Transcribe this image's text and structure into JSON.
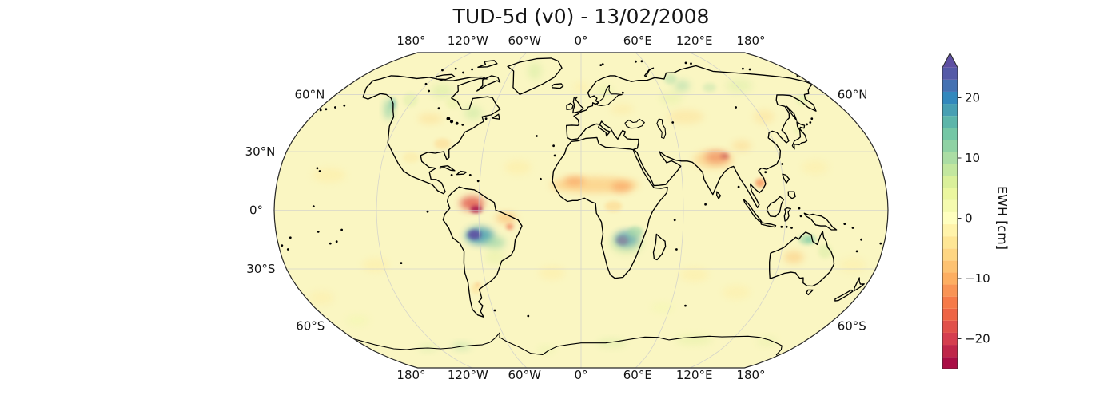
{
  "figure": {
    "title": "TUD-5d (v0) - 13/02/2008",
    "background": "#ffffff"
  },
  "map": {
    "projection": "Robinson",
    "background_color": "#faf6c2",
    "grid_color": "#cccccc",
    "coast_color": "#000000",
    "outline_color": "#262626",
    "lon_gridlines_deg": [
      -120,
      -60,
      0,
      60,
      120
    ],
    "lat_gridlines_deg": [
      -60,
      -30,
      0,
      30,
      60
    ],
    "top_axis_labels": [
      {
        "lon": -180,
        "text": "180°"
      },
      {
        "lon": -120,
        "text": "120°W"
      },
      {
        "lon": -60,
        "text": "60°W"
      },
      {
        "lon": 0,
        "text": "0°"
      },
      {
        "lon": 60,
        "text": "60°E"
      },
      {
        "lon": 120,
        "text": "120°E"
      },
      {
        "lon": 180,
        "text": "180°"
      }
    ],
    "bottom_axis_labels": [
      {
        "lon": -180,
        "text": "180°"
      },
      {
        "lon": -120,
        "text": "120°W"
      },
      {
        "lon": -60,
        "text": "60°W"
      },
      {
        "lon": 0,
        "text": "0°"
      },
      {
        "lon": 60,
        "text": "60°E"
      },
      {
        "lon": 120,
        "text": "120°E"
      },
      {
        "lon": 180,
        "text": "180°"
      }
    ],
    "left_axis_labels": [
      {
        "lat": 60,
        "text": "60°N"
      },
      {
        "lat": 30,
        "text": "30°N"
      },
      {
        "lat": 0,
        "text": "0°"
      },
      {
        "lat": -30,
        "text": "30°S"
      },
      {
        "lat": -60,
        "text": "60°S"
      }
    ],
    "right_axis_labels": [
      {
        "lat": 60,
        "text": "60°N"
      },
      {
        "lat": -60,
        "text": "60°S"
      }
    ]
  },
  "colorbar": {
    "label": "EWH [cm]",
    "vmin": -25,
    "vmax": 25,
    "n_segments": 25,
    "extend": "max",
    "colormap_name": "Spectral",
    "colormap_stops": [
      "#9e0142",
      "#d53e4f",
      "#f46d43",
      "#fdae61",
      "#fee08b",
      "#ffffbf",
      "#e6f598",
      "#abdda4",
      "#66c2a5",
      "#3288bd",
      "#5e4fa2"
    ],
    "ticks": [
      {
        "value": 20,
        "text": "20"
      },
      {
        "value": 10,
        "text": "10"
      },
      {
        "value": 0,
        "text": "0"
      },
      {
        "value": -10,
        "text": "−10"
      },
      {
        "value": -20,
        "text": "−20"
      }
    ]
  },
  "chart_data": {
    "type": "heatmap",
    "title": "TUD-5d (v0) - 13/02/2008",
    "variable": "EWH [cm]",
    "date": "13/02/2008",
    "projection": "Robinson",
    "value_range": [
      -25,
      25
    ],
    "legend_position": "right",
    "anomalies": [
      {
        "region": "Amazon north",
        "lon": -64,
        "lat": 3.5,
        "rx_deg": 7,
        "ry_deg": 4,
        "ewh_cm": -18,
        "opacity": 0.8
      },
      {
        "region": "Amazon north core",
        "lon": -61.5,
        "lat": 0.5,
        "rx_deg": 3.5,
        "ry_deg": 2,
        "ewh_cm": -25,
        "opacity": 0.8
      },
      {
        "region": "NE Brazil",
        "lon": -44,
        "lat": -4,
        "rx_deg": 6,
        "ry_deg": 3,
        "ewh_cm": -10,
        "opacity": 0.55
      },
      {
        "region": "NE Brazil spot",
        "lon": -42,
        "lat": -8.5,
        "rx_deg": 2.2,
        "ry_deg": 1.8,
        "ewh_cm": -16,
        "opacity": 0.6
      },
      {
        "region": "Amazon south",
        "lon": -60,
        "lat": -13,
        "rx_deg": 8.5,
        "ry_deg": 5,
        "ewh_cm": 18,
        "opacity": 0.85
      },
      {
        "region": "Amazon south core",
        "lon": -63,
        "lat": -12.5,
        "rx_deg": 4,
        "ry_deg": 2.8,
        "ewh_cm": 25,
        "opacity": 0.9
      },
      {
        "region": "Amazon teal tail",
        "lon": -51,
        "lat": -16.5,
        "rx_deg": 6,
        "ry_deg": 3.5,
        "ewh_cm": 12,
        "opacity": 0.6
      },
      {
        "region": "South Brazil",
        "lon": -52,
        "lat": -24,
        "rx_deg": 6,
        "ry_deg": 4,
        "ewh_cm": 6,
        "opacity": 0.35
      },
      {
        "region": "Zambezi blue",
        "lon": 27,
        "lat": -15,
        "rx_deg": 7,
        "ry_deg": 4.5,
        "ewh_cm": 20,
        "opacity": 0.85
      },
      {
        "region": "Zambezi core",
        "lon": 24.5,
        "lat": -15.5,
        "rx_deg": 3.5,
        "ry_deg": 2.5,
        "ewh_cm": 25,
        "opacity": 0.95
      },
      {
        "region": "East Africa teal",
        "lon": 32,
        "lat": -11,
        "rx_deg": 4.5,
        "ry_deg": 3,
        "ewh_cm": 12,
        "opacity": 0.55
      },
      {
        "region": "Zambezi halo",
        "lon": 27,
        "lat": -17,
        "rx_deg": 10,
        "ry_deg": 6.5,
        "ewh_cm": 8,
        "opacity": 0.4
      },
      {
        "region": "Sahel band",
        "lon": 8,
        "lat": 13,
        "rx_deg": 26,
        "ry_deg": 4.5,
        "ewh_cm": -8,
        "opacity": 0.6
      },
      {
        "region": "Sahel west",
        "lon": -4,
        "lat": 15,
        "rx_deg": 6,
        "ry_deg": 2.5,
        "ewh_cm": -12,
        "opacity": 0.6
      },
      {
        "region": "Sahel east",
        "lon": 24,
        "lat": 12,
        "rx_deg": 6,
        "ry_deg": 3,
        "ewh_cm": -12,
        "opacity": 0.55
      },
      {
        "region": "Congo",
        "lon": 19,
        "lat": 2,
        "rx_deg": 5,
        "ry_deg": 3,
        "ewh_cm": -7,
        "opacity": 0.45
      },
      {
        "region": "North India",
        "lon": 82,
        "lat": 27,
        "rx_deg": 7,
        "ry_deg": 3,
        "ewh_cm": -18,
        "opacity": 0.75
      },
      {
        "region": "North India core",
        "lon": 87,
        "lat": 27.5,
        "rx_deg": 2.5,
        "ry_deg": 1.6,
        "ewh_cm": -24,
        "opacity": 0.7
      },
      {
        "region": "India halo",
        "lon": 80,
        "lat": 26,
        "rx_deg": 12,
        "ry_deg": 5,
        "ewh_cm": -8,
        "opacity": 0.5
      },
      {
        "region": "Indochina",
        "lon": 106,
        "lat": 14,
        "rx_deg": 3,
        "ry_deg": 2.5,
        "ewh_cm": -13,
        "opacity": 0.7
      },
      {
        "region": "Central Asia",
        "lon": 70,
        "lat": 48,
        "rx_deg": 12,
        "ry_deg": 4,
        "ewh_cm": -6,
        "opacity": 0.35
      },
      {
        "region": "NE China",
        "lon": 122,
        "lat": 48,
        "rx_deg": 7,
        "ry_deg": 4,
        "ewh_cm": -6,
        "opacity": 0.35
      },
      {
        "region": "Tibet east",
        "lon": 99,
        "lat": 33,
        "rx_deg": 6,
        "ry_deg": 3,
        "ewh_cm": -7,
        "opacity": 0.4
      },
      {
        "region": "West Siberia",
        "lon": 65,
        "lat": 58,
        "rx_deg": 8,
        "ry_deg": 4,
        "ewh_cm": 6,
        "opacity": 0.3
      },
      {
        "region": "Siberia teal west",
        "lon": 78,
        "lat": 65,
        "rx_deg": 6,
        "ry_deg": 3,
        "ewh_cm": 12,
        "opacity": 0.45
      },
      {
        "region": "Siberia teal east",
        "lon": 98,
        "lat": 64,
        "rx_deg": 5,
        "ry_deg": 2.5,
        "ewh_cm": 10,
        "opacity": 0.35
      },
      {
        "region": "East Siberia",
        "lon": 122,
        "lat": 65,
        "rx_deg": 10,
        "ry_deg": 4,
        "ewh_cm": 7,
        "opacity": 0.35
      },
      {
        "region": "Kara coast",
        "lon": 72,
        "lat": 69,
        "rx_deg": 5,
        "ry_deg": 3,
        "ewh_cm": 11,
        "opacity": 0.4
      },
      {
        "region": "East Europe",
        "lon": 28,
        "lat": 52,
        "rx_deg": 8,
        "ry_deg": 3,
        "ewh_cm": -5,
        "opacity": 0.3
      },
      {
        "region": "Scandinavia",
        "lon": 18,
        "lat": 62,
        "rx_deg": 6,
        "ry_deg": 3,
        "ewh_cm": 6,
        "opacity": 0.35
      },
      {
        "region": "Alaska coast teal",
        "lon": -132,
        "lat": 52,
        "rx_deg": 3,
        "ry_deg": 6,
        "ewh_cm": 13,
        "opacity": 0.65
      },
      {
        "region": "Alaska coast core",
        "lon": -132,
        "lat": 55,
        "rx_deg": 2,
        "ry_deg": 3,
        "ewh_cm": 16,
        "opacity": 0.55
      },
      {
        "region": "BC inland",
        "lon": -122,
        "lat": 57,
        "rx_deg": 5,
        "ry_deg": 4,
        "ewh_cm": 7,
        "opacity": 0.35
      },
      {
        "region": "North Canada",
        "lon": -104,
        "lat": 62,
        "rx_deg": 8,
        "ry_deg": 4,
        "ewh_cm": 7,
        "opacity": 0.45
      },
      {
        "region": "Central Canada",
        "lon": -90,
        "lat": 55,
        "rx_deg": 5,
        "ry_deg": 3,
        "ewh_cm": 6,
        "opacity": 0.3
      },
      {
        "region": "Quebec",
        "lon": -73,
        "lat": 50,
        "rx_deg": 6,
        "ry_deg": 4,
        "ewh_cm": 8,
        "opacity": 0.5
      },
      {
        "region": "Prairies",
        "lon": -100,
        "lat": 47,
        "rx_deg": 8,
        "ry_deg": 3,
        "ewh_cm": -6,
        "opacity": 0.4
      },
      {
        "region": "SE US",
        "lon": -86,
        "lat": 34,
        "rx_deg": 5,
        "ry_deg": 3,
        "ewh_cm": -7,
        "opacity": 0.4
      },
      {
        "region": "Mexico",
        "lon": -103,
        "lat": 27,
        "rx_deg": 5,
        "ry_deg": 3,
        "ewh_cm": -5,
        "opacity": 0.3
      },
      {
        "region": "Greenland",
        "lon": -40,
        "lat": 74,
        "rx_deg": 6,
        "ry_deg": 5,
        "ewh_cm": 7,
        "opacity": 0.45
      },
      {
        "region": "North Australia teal",
        "lon": 134,
        "lat": -15,
        "rx_deg": 5,
        "ry_deg": 3,
        "ewh_cm": 12,
        "opacity": 0.55
      },
      {
        "region": "North Australia core",
        "lon": 135,
        "lat": -15,
        "rx_deg": 2.5,
        "ry_deg": 1.5,
        "ewh_cm": 15,
        "opacity": 0.5
      },
      {
        "region": "Central Australia",
        "lon": 128,
        "lat": -24,
        "rx_deg": 6,
        "ry_deg": 3.5,
        "ewh_cm": -8,
        "opacity": 0.5
      },
      {
        "region": "East Australia",
        "lon": 146,
        "lat": -21,
        "rx_deg": 4,
        "ry_deg": 4,
        "ewh_cm": 7,
        "opacity": 0.4
      },
      {
        "region": "Patagonia",
        "lon": -67,
        "lat": -40,
        "rx_deg": 3,
        "ry_deg": 3,
        "ewh_cm": -6,
        "opacity": 0.4
      },
      {
        "region": "Patagonia spot",
        "lon": -65,
        "lat": -38,
        "rx_deg": 1.2,
        "ry_deg": 1,
        "ewh_cm": -12,
        "opacity": 0.5
      },
      {
        "region": "Kamchatka",
        "lon": 158,
        "lat": 57,
        "rx_deg": 4,
        "ry_deg": 3,
        "ewh_cm": 7,
        "opacity": 0.35
      },
      {
        "region": "Japan",
        "lon": 139,
        "lat": 41,
        "rx_deg": 3,
        "ry_deg": 2,
        "ewh_cm": 6,
        "opacity": 0.3
      },
      {
        "region": "Antarctica teal west",
        "lon": -100,
        "lat": -72,
        "rx_deg": 8,
        "ry_deg": 2.2,
        "ewh_cm": 10,
        "opacity": 0.45
      },
      {
        "region": "Antarctica green 1",
        "lon": -130,
        "lat": -73,
        "rx_deg": 8,
        "ry_deg": 2,
        "ewh_cm": 8,
        "opacity": 0.35
      },
      {
        "region": "Antarctica green 2",
        "lon": -30,
        "lat": -74,
        "rx_deg": 8,
        "ry_deg": 2,
        "ewh_cm": 6,
        "opacity": 0.3
      },
      {
        "region": "Antarctica green 3",
        "lon": 25,
        "lat": -70,
        "rx_deg": 12,
        "ry_deg": 2.5,
        "ewh_cm": 7,
        "opacity": 0.4
      },
      {
        "region": "Antarctica green 4",
        "lon": 90,
        "lat": -68,
        "rx_deg": 15,
        "ry_deg": 3,
        "ewh_cm": 6,
        "opacity": 0.35
      },
      {
        "region": "Antarctica green 5",
        "lon": 150,
        "lat": -69,
        "rx_deg": 8,
        "ry_deg": 2.5,
        "ewh_cm": 6,
        "opacity": 0.3
      },
      {
        "region": "NE Pacific wisp",
        "lon": -150,
        "lat": 18,
        "rx_deg": 10,
        "ry_deg": 4,
        "ewh_cm": -3,
        "opacity": 0.5
      },
      {
        "region": "SE Pacific wisp",
        "lon": -125,
        "lat": -28,
        "rx_deg": 8,
        "ry_deg": 4,
        "ewh_cm": -3,
        "opacity": 0.45
      },
      {
        "region": "North Atlantic wisp",
        "lon": -38,
        "lat": 22,
        "rx_deg": 8,
        "ry_deg": 4,
        "ewh_cm": -3,
        "opacity": 0.5
      },
      {
        "region": "South Atlantic wisp",
        "lon": -18,
        "lat": -32,
        "rx_deg": 8,
        "ry_deg": 4,
        "ewh_cm": -3,
        "opacity": 0.45
      },
      {
        "region": "Indian wisp",
        "lon": 70,
        "lat": -33,
        "rx_deg": 9,
        "ry_deg": 4,
        "ewh_cm": -3,
        "opacity": 0.45
      },
      {
        "region": "South Indian wisp",
        "lon": 100,
        "lat": -42,
        "rx_deg": 9,
        "ry_deg": 4,
        "ewh_cm": -3,
        "opacity": 0.4
      },
      {
        "region": "SW Pacific wisp",
        "lon": 165,
        "lat": -28,
        "rx_deg": 8,
        "ry_deg": 4,
        "ewh_cm": -3,
        "opacity": 0.4
      },
      {
        "region": "South Pacific wisp",
        "lon": -170,
        "lat": -45,
        "rx_deg": 8,
        "ry_deg": 4,
        "ewh_cm": -3,
        "opacity": 0.4
      },
      {
        "region": "West Pacific wisp",
        "lon": 140,
        "lat": 22,
        "rx_deg": 8,
        "ry_deg": 4,
        "ewh_cm": -3,
        "opacity": 0.4
      },
      {
        "region": "Norwegian Sea wisp",
        "lon": 0,
        "lat": 64,
        "rx_deg": 6,
        "ry_deg": 3,
        "ewh_cm": -3,
        "opacity": 0.45
      },
      {
        "region": "Southern Ocean green",
        "lon": -160,
        "lat": -57,
        "rx_deg": 8,
        "ry_deg": 3,
        "ewh_cm": 3,
        "opacity": 0.4
      },
      {
        "region": "South Indian green",
        "lon": 55,
        "lat": -50,
        "rx_deg": 8,
        "ry_deg": 3,
        "ewh_cm": 3,
        "opacity": 0.35
      }
    ]
  }
}
